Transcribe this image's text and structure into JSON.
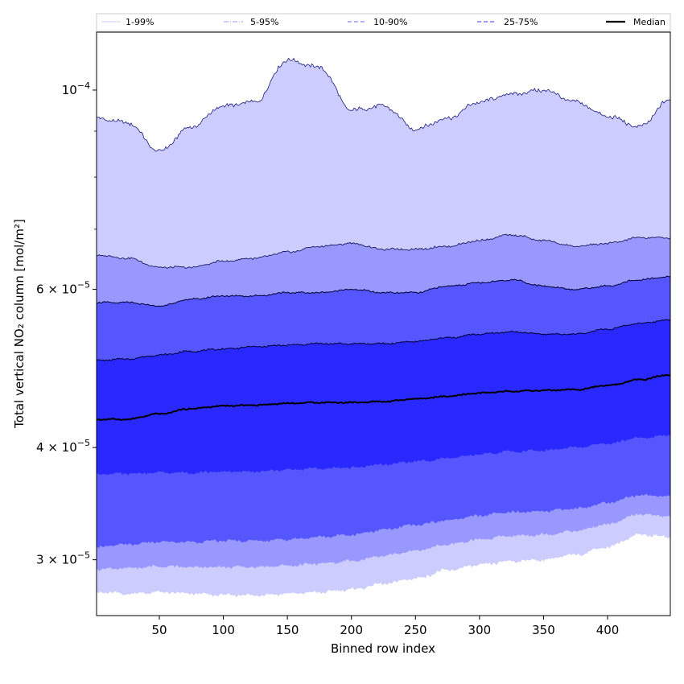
{
  "chart_data": {
    "type": "area",
    "xlabel": "Binned row index",
    "ylabel": "Total vertical NO₂ column [mol/m²]",
    "y_scale": "log",
    "xlim": [
      1,
      449
    ],
    "ylim": [
      2.6e-05,
      0.000116
    ],
    "x_ticks": [
      50,
      100,
      150,
      200,
      250,
      300,
      350,
      400
    ],
    "x_tick_labels": [
      "50",
      "100",
      "150",
      "200",
      "250",
      "300",
      "350",
      "400"
    ],
    "y_ticks": [
      {
        "value": 3e-05,
        "mantissa": "3",
        "exponent": "−5"
      },
      {
        "value": 4e-05,
        "mantissa": "4",
        "exponent": "−5"
      },
      {
        "value": 6e-05,
        "mantissa": "6",
        "exponent": "−5"
      },
      {
        "value": 0.0001,
        "mantissa": "",
        "exponent": "−4"
      }
    ],
    "y_minor_ticks": [
      7e-05,
      8e-05,
      9e-05
    ],
    "legend_position": "top",
    "legend": [
      {
        "label": "1-99%",
        "color": "#ccccff",
        "dash": "solid"
      },
      {
        "label": "5-95%",
        "color": "#9898ff",
        "dash": "dashdot"
      },
      {
        "label": "10-90%",
        "color": "#6a6aff",
        "dash": "dashed"
      },
      {
        "label": "25-75%",
        "color": "#3a3aff",
        "dash": "dashed"
      },
      {
        "label": "Median",
        "color": "#000000",
        "dash": "solid"
      }
    ],
    "x": [
      1,
      25,
      50,
      75,
      100,
      125,
      150,
      175,
      200,
      225,
      250,
      275,
      300,
      325,
      350,
      375,
      400,
      425,
      449
    ],
    "series": [
      {
        "name": "1-99%",
        "color": "#ccccff",
        "upper": [
          9.3e-05,
          9.2e-05,
          8.55e-05,
          9.1e-05,
          9.6e-05,
          9.7e-05,
          0.000108,
          0.000106,
          9.5e-05,
          9.6e-05,
          9.05e-05,
          9.3e-05,
          9.7e-05,
          9.9e-05,
          0.0001,
          9.7e-05,
          9.35e-05,
          9.1e-05,
          9.75e-05
        ],
        "lower": [
          2.76e-05,
          2.75e-05,
          2.76e-05,
          2.75e-05,
          2.74e-05,
          2.74e-05,
          2.75e-05,
          2.76e-05,
          2.78e-05,
          2.82e-05,
          2.86e-05,
          2.92e-05,
          2.96e-05,
          2.99e-05,
          3e-05,
          3.04e-05,
          3.1e-05,
          3.2e-05,
          3.18e-05
        ]
      },
      {
        "name": "5-95%",
        "color": "#9898ff",
        "upper": [
          6.55e-05,
          6.5e-05,
          6.35e-05,
          6.35e-05,
          6.45e-05,
          6.5e-05,
          6.6e-05,
          6.7e-05,
          6.75e-05,
          6.65e-05,
          6.65e-05,
          6.7e-05,
          6.8e-05,
          6.9e-05,
          6.8e-05,
          6.7e-05,
          6.75e-05,
          6.85e-05,
          6.85e-05
        ]
      },
      {
        "name": "10-90%",
        "color": "#6a6aff",
        "upper": [
          5.8e-05,
          5.8e-05,
          5.75e-05,
          5.85e-05,
          5.9e-05,
          5.9e-05,
          5.95e-05,
          5.95e-05,
          6e-05,
          5.95e-05,
          5.95e-05,
          6.05e-05,
          6.1e-05,
          6.15e-05,
          6.05e-05,
          6e-05,
          6.05e-05,
          6.15e-05,
          6.2e-05
        ],
        "lower": [
          3.1e-05,
          3.12e-05,
          3.14e-05,
          3.14e-05,
          3.15e-05,
          3.15e-05,
          3.16e-05,
          3.18e-05,
          3.2e-05,
          3.24e-05,
          3.28e-05,
          3.32e-05,
          3.36e-05,
          3.39e-05,
          3.4e-05,
          3.42e-05,
          3.47e-05,
          3.54e-05,
          3.53e-05
        ]
      },
      {
        "name": "25-75%",
        "color": "#3a3aff",
        "upper": [
          5e-05,
          5.02e-05,
          5.07e-05,
          5.12e-05,
          5.15e-05,
          5.18e-05,
          5.2e-05,
          5.22e-05,
          5.22e-05,
          5.22e-05,
          5.25e-05,
          5.3e-05,
          5.35e-05,
          5.38e-05,
          5.35e-05,
          5.35e-05,
          5.42e-05,
          5.5e-05,
          5.55e-05
        ],
        "lower": [
          3.74e-05,
          3.74e-05,
          3.75e-05,
          3.75e-05,
          3.76e-05,
          3.76e-05,
          3.78e-05,
          3.79e-05,
          3.8e-05,
          3.83e-05,
          3.86e-05,
          3.89e-05,
          3.93e-05,
          3.96e-05,
          3.97e-05,
          4e-05,
          4.04e-05,
          4.1e-05,
          4.13e-05
        ]
      },
      {
        "name": "Median",
        "color": "#000000",
        "values": [
          4.3e-05,
          4.3e-05,
          4.36e-05,
          4.42e-05,
          4.45e-05,
          4.46e-05,
          4.48e-05,
          4.49e-05,
          4.49e-05,
          4.5e-05,
          4.53e-05,
          4.56e-05,
          4.6e-05,
          4.62e-05,
          4.63e-05,
          4.64e-05,
          4.69e-05,
          4.76e-05,
          4.82e-05
        ]
      }
    ]
  }
}
